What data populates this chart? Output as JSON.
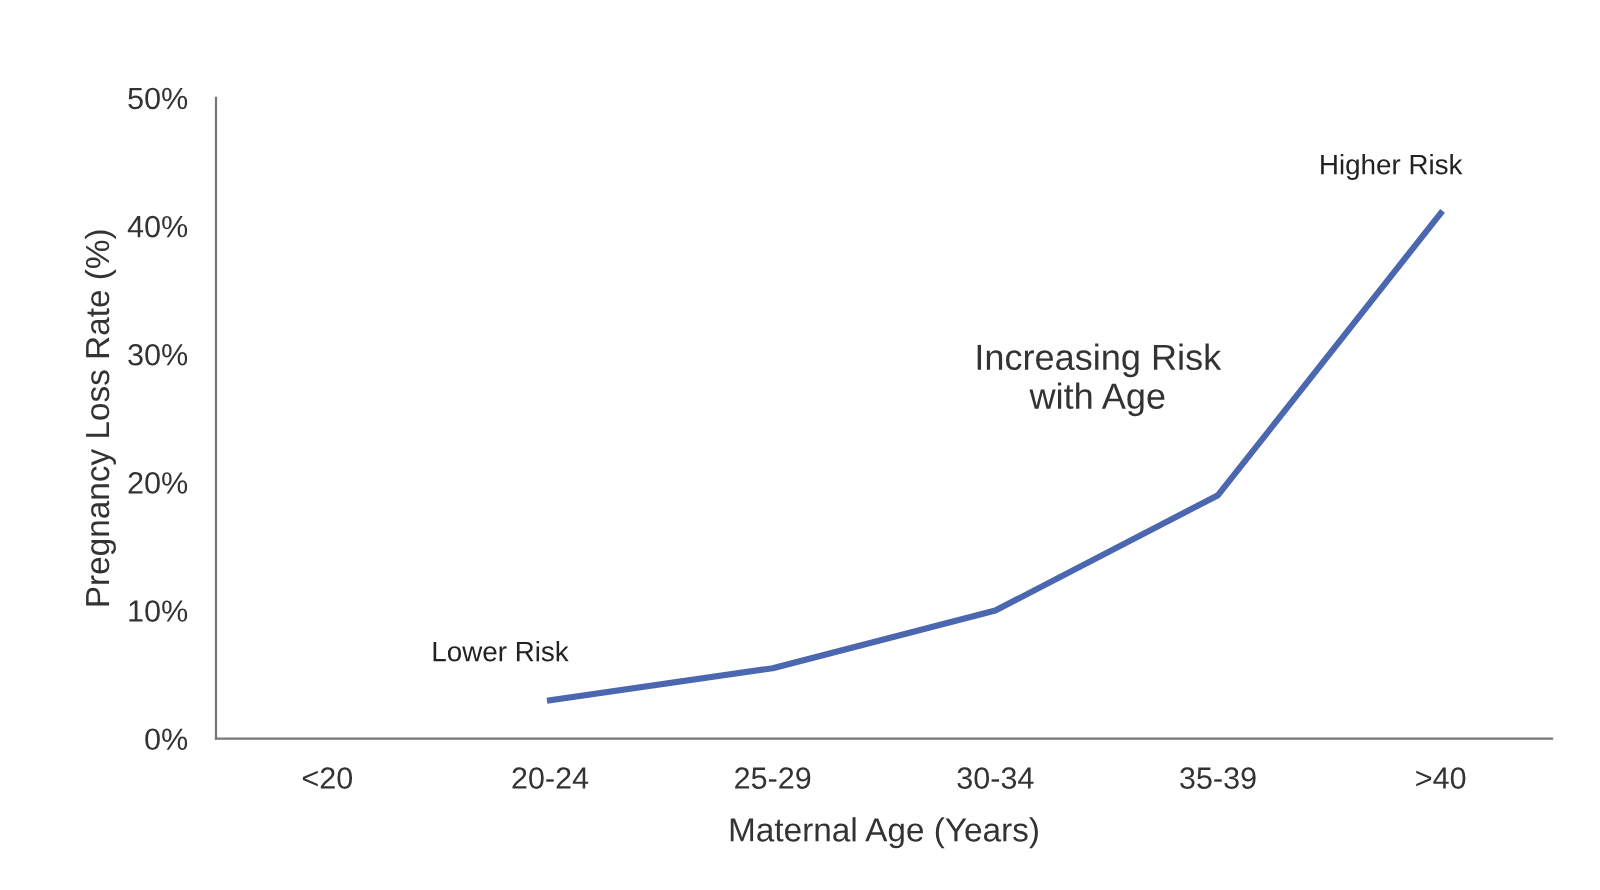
{
  "chart_data": {
    "type": "line",
    "xlabel": "Maternal Age (Years)",
    "ylabel": "Pregnancy Loss Rate (%)",
    "categories": [
      "<20",
      "20-24",
      "25-29",
      "30-34",
      "35-39",
      ">40"
    ],
    "series": [
      {
        "color": "#4a67b0",
        "values": [
          null,
          3,
          5.5,
          10,
          19,
          41
        ]
      }
    ],
    "ylim": [
      0,
      50
    ],
    "yticks": [
      {
        "value": 0,
        "label": "0%"
      },
      {
        "value": 10,
        "label": "10%"
      },
      {
        "value": 20,
        "label": "20%"
      },
      {
        "value": 30,
        "label": "30%"
      },
      {
        "value": 40,
        "label": "40%"
      },
      {
        "value": 50,
        "label": "50%"
      }
    ],
    "annotations": [
      {
        "text": "Lower Risk",
        "x": "20-24",
        "y": 3
      },
      {
        "text": "Higher Risk",
        "x": ">40",
        "y": 41
      },
      "Increasing Risk\nwith Age"
    ],
    "grid": false,
    "legend": false,
    "marker": "none",
    "line_style": "solid"
  }
}
